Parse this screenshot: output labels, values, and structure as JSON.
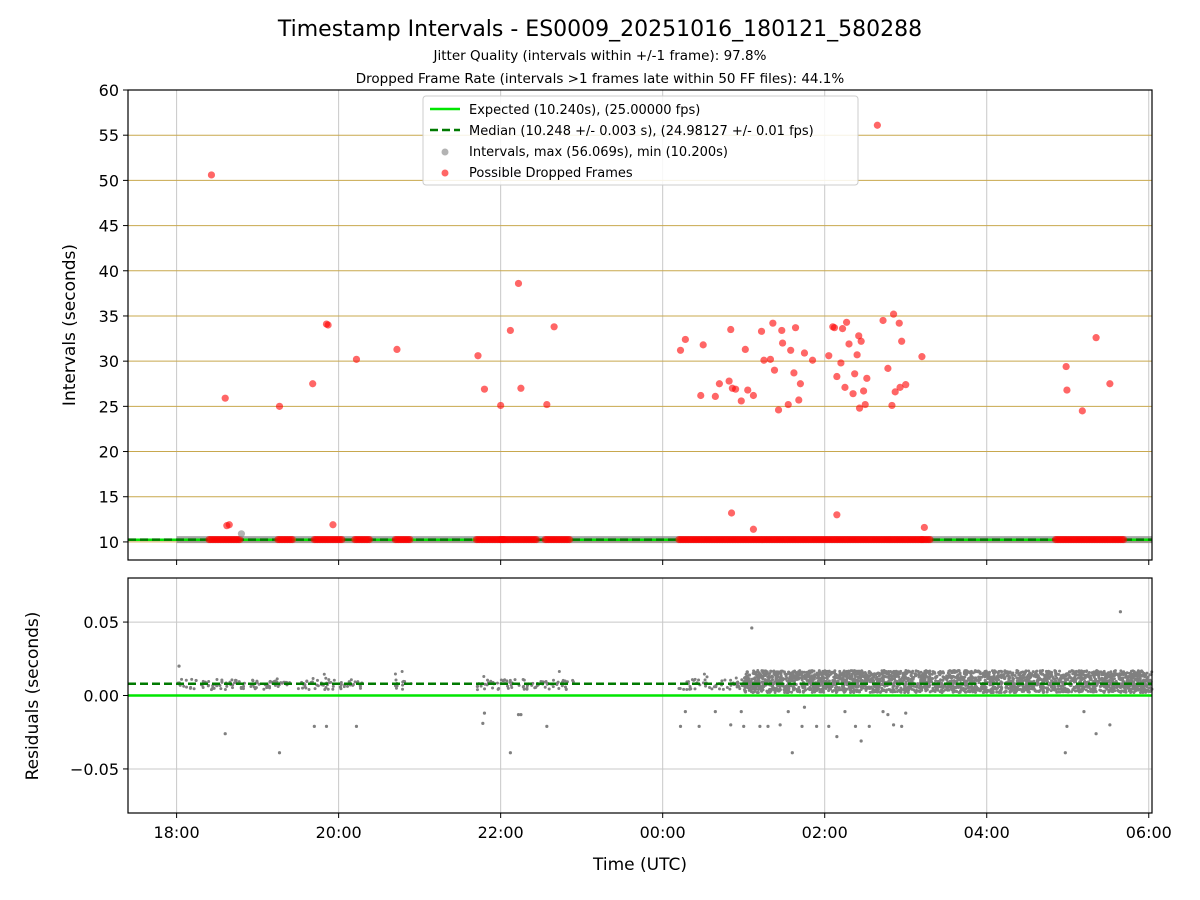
{
  "chart_data": {
    "type": "scatter",
    "title": "Timestamp Intervals - ES0009_20251016_180121_580288",
    "subtitles": [
      "Jitter Quality (intervals within +/-1 frame): 97.8%",
      "Dropped Frame Rate (intervals >1 frames late within 50 FF files): 44.1%"
    ],
    "colors": {
      "expected": "#00e600",
      "median": "#007a00",
      "intervals": "#808080",
      "dropped": "#ff0000",
      "hgrid_top": "#c8a84e",
      "grid": "#c8c8c8"
    },
    "legend": [
      "Expected (10.240s), (25.00000 fps)",
      "Median (10.248 +/- 0.003 s), (24.98127 +/- 0.01 fps)",
      "Intervals, max (56.069s), min (10.200s)",
      "Possible Dropped Frames"
    ],
    "x_axis": {
      "label": "Time (UTC)",
      "unit": "hours since 18:00",
      "xlim": [
        -0.6,
        12.04
      ],
      "ticks": [
        0,
        2,
        4,
        6,
        8,
        10,
        12
      ],
      "tick_labels": [
        "18:00",
        "20:00",
        "22:00",
        "00:00",
        "02:00",
        "04:00",
        "06:00"
      ]
    },
    "top_panel": {
      "ylabel": "Intervals (seconds)",
      "ylim": [
        8,
        60
      ],
      "yticks": [
        10,
        15,
        20,
        25,
        30,
        35,
        40,
        45,
        50,
        55,
        60
      ],
      "expected": 10.24,
      "median": 10.248,
      "normal_band_segments": [
        [
          0,
          12.04
        ]
      ],
      "dropped_baseline_segments": [
        [
          0.4,
          0.8
        ],
        [
          1.25,
          1.45
        ],
        [
          1.7,
          2.05
        ],
        [
          2.2,
          2.4
        ],
        [
          2.7,
          2.9
        ],
        [
          3.7,
          4.05
        ],
        [
          4.0,
          4.45
        ],
        [
          4.55,
          4.85
        ],
        [
          6.2,
          9.2
        ],
        [
          9.2,
          9.3
        ],
        [
          10.85,
          11.7
        ]
      ],
      "dropped_points": [
        {
          "x": 0.43,
          "y": 50.6
        },
        {
          "x": 0.6,
          "y": 25.9
        },
        {
          "x": 0.62,
          "y": 11.8
        },
        {
          "x": 0.65,
          "y": 11.9
        },
        {
          "x": 1.27,
          "y": 25.0
        },
        {
          "x": 1.68,
          "y": 27.5
        },
        {
          "x": 1.85,
          "y": 34.1
        },
        {
          "x": 1.87,
          "y": 34.0
        },
        {
          "x": 1.93,
          "y": 11.9
        },
        {
          "x": 2.22,
          "y": 30.2
        },
        {
          "x": 2.72,
          "y": 31.3
        },
        {
          "x": 3.72,
          "y": 30.6
        },
        {
          "x": 3.8,
          "y": 26.9
        },
        {
          "x": 4.0,
          "y": 25.1
        },
        {
          "x": 4.12,
          "y": 33.4
        },
        {
          "x": 4.22,
          "y": 38.6
        },
        {
          "x": 4.25,
          "y": 27.0
        },
        {
          "x": 4.57,
          "y": 25.2
        },
        {
          "x": 4.66,
          "y": 33.8
        },
        {
          "x": 6.22,
          "y": 31.2
        },
        {
          "x": 6.28,
          "y": 32.4
        },
        {
          "x": 6.47,
          "y": 26.2
        },
        {
          "x": 6.5,
          "y": 31.8
        },
        {
          "x": 6.65,
          "y": 26.1
        },
        {
          "x": 6.7,
          "y": 27.5
        },
        {
          "x": 6.82,
          "y": 27.8
        },
        {
          "x": 6.84,
          "y": 33.5
        },
        {
          "x": 6.86,
          "y": 27.0
        },
        {
          "x": 6.9,
          "y": 26.9
        },
        {
          "x": 6.97,
          "y": 25.6
        },
        {
          "x": 7.02,
          "y": 31.3
        },
        {
          "x": 7.05,
          "y": 26.8
        },
        {
          "x": 7.12,
          "y": 26.2
        },
        {
          "x": 7.22,
          "y": 33.3
        },
        {
          "x": 7.25,
          "y": 30.1
        },
        {
          "x": 7.33,
          "y": 30.2
        },
        {
          "x": 7.36,
          "y": 34.2
        },
        {
          "x": 7.38,
          "y": 29.0
        },
        {
          "x": 7.43,
          "y": 24.6
        },
        {
          "x": 7.47,
          "y": 33.4
        },
        {
          "x": 7.48,
          "y": 32.0
        },
        {
          "x": 7.55,
          "y": 25.2
        },
        {
          "x": 7.58,
          "y": 31.2
        },
        {
          "x": 7.62,
          "y": 28.7
        },
        {
          "x": 7.64,
          "y": 33.7
        },
        {
          "x": 7.68,
          "y": 25.7
        },
        {
          "x": 7.7,
          "y": 27.5
        },
        {
          "x": 7.75,
          "y": 30.9
        },
        {
          "x": 7.85,
          "y": 30.1
        },
        {
          "x": 8.05,
          "y": 30.6
        },
        {
          "x": 8.1,
          "y": 33.8
        },
        {
          "x": 8.12,
          "y": 33.7
        },
        {
          "x": 8.15,
          "y": 28.3
        },
        {
          "x": 8.2,
          "y": 29.8
        },
        {
          "x": 8.22,
          "y": 33.6
        },
        {
          "x": 8.25,
          "y": 27.1
        },
        {
          "x": 8.27,
          "y": 34.3
        },
        {
          "x": 8.3,
          "y": 31.9
        },
        {
          "x": 8.35,
          "y": 26.4
        },
        {
          "x": 8.37,
          "y": 28.6
        },
        {
          "x": 8.4,
          "y": 30.7
        },
        {
          "x": 8.42,
          "y": 32.8
        },
        {
          "x": 8.43,
          "y": 24.8
        },
        {
          "x": 8.45,
          "y": 32.2
        },
        {
          "x": 8.48,
          "y": 26.7
        },
        {
          "x": 8.5,
          "y": 25.2
        },
        {
          "x": 8.52,
          "y": 28.1
        },
        {
          "x": 8.65,
          "y": 56.1
        },
        {
          "x": 8.72,
          "y": 34.5
        },
        {
          "x": 8.78,
          "y": 29.2
        },
        {
          "x": 8.83,
          "y": 25.1
        },
        {
          "x": 8.85,
          "y": 35.2
        },
        {
          "x": 8.87,
          "y": 26.6
        },
        {
          "x": 8.92,
          "y": 34.2
        },
        {
          "x": 8.93,
          "y": 27.1
        },
        {
          "x": 8.95,
          "y": 32.2
        },
        {
          "x": 9.0,
          "y": 27.4
        },
        {
          "x": 9.2,
          "y": 30.5
        },
        {
          "x": 9.23,
          "y": 11.6
        },
        {
          "x": 6.85,
          "y": 13.2
        },
        {
          "x": 7.12,
          "y": 11.4
        },
        {
          "x": 8.15,
          "y": 13.0
        },
        {
          "x": 10.98,
          "y": 29.4
        },
        {
          "x": 10.99,
          "y": 26.8
        },
        {
          "x": 11.18,
          "y": 24.5
        },
        {
          "x": 11.35,
          "y": 32.6
        },
        {
          "x": 11.52,
          "y": 27.5
        }
      ],
      "grey_points": [
        {
          "x": 0.8,
          "y": 10.9
        }
      ]
    },
    "bottom_panel": {
      "ylabel": "Residuals (seconds)",
      "ylim": [
        -0.08,
        0.08
      ],
      "yticks": [
        -0.05,
        0.0,
        0.05
      ],
      "ytick_labels": [
        "−0.05",
        "0.00",
        "0.05"
      ],
      "expected": 0.0,
      "median": 0.008,
      "sparse_clusters": [
        [
          0.0,
          1.4
        ],
        [
          1.5,
          2.3
        ],
        [
          2.7,
          2.9
        ],
        [
          3.7,
          4.9
        ],
        [
          6.2,
          7.0
        ]
      ],
      "dense_band": {
        "x_range": [
          7.0,
          12.04
        ],
        "y_range": [
          0.002,
          0.017
        ]
      },
      "outlier_points": [
        {
          "x": 0.03,
          "y": 0.02
        },
        {
          "x": 0.6,
          "y": -0.026
        },
        {
          "x": 1.27,
          "y": -0.039
        },
        {
          "x": 1.7,
          "y": -0.021
        },
        {
          "x": 1.85,
          "y": -0.021
        },
        {
          "x": 2.22,
          "y": -0.021
        },
        {
          "x": 3.8,
          "y": -0.012
        },
        {
          "x": 3.78,
          "y": -0.019
        },
        {
          "x": 4.12,
          "y": -0.039
        },
        {
          "x": 4.22,
          "y": -0.013
        },
        {
          "x": 4.25,
          "y": -0.013
        },
        {
          "x": 4.57,
          "y": -0.021
        },
        {
          "x": 6.22,
          "y": -0.021
        },
        {
          "x": 6.28,
          "y": -0.011
        },
        {
          "x": 6.45,
          "y": -0.021
        },
        {
          "x": 6.65,
          "y": -0.011
        },
        {
          "x": 6.84,
          "y": -0.02
        },
        {
          "x": 6.97,
          "y": -0.011
        },
        {
          "x": 7.0,
          "y": -0.021
        },
        {
          "x": 7.1,
          "y": 0.046
        },
        {
          "x": 7.2,
          "y": -0.021
        },
        {
          "x": 7.3,
          "y": -0.021
        },
        {
          "x": 7.45,
          "y": -0.02
        },
        {
          "x": 7.55,
          "y": -0.011
        },
        {
          "x": 7.6,
          "y": -0.039
        },
        {
          "x": 7.72,
          "y": -0.021
        },
        {
          "x": 7.75,
          "y": -0.008
        },
        {
          "x": 7.9,
          "y": -0.021
        },
        {
          "x": 8.05,
          "y": -0.021
        },
        {
          "x": 8.15,
          "y": -0.028
        },
        {
          "x": 8.25,
          "y": -0.011
        },
        {
          "x": 8.38,
          "y": -0.021
        },
        {
          "x": 8.45,
          "y": -0.031
        },
        {
          "x": 8.55,
          "y": -0.021
        },
        {
          "x": 8.72,
          "y": -0.011
        },
        {
          "x": 8.78,
          "y": -0.013
        },
        {
          "x": 8.85,
          "y": -0.02
        },
        {
          "x": 8.95,
          "y": -0.021
        },
        {
          "x": 9.0,
          "y": -0.012
        },
        {
          "x": 10.97,
          "y": -0.039
        },
        {
          "x": 10.99,
          "y": -0.021
        },
        {
          "x": 11.2,
          "y": -0.011
        },
        {
          "x": 11.35,
          "y": -0.026
        },
        {
          "x": 11.52,
          "y": -0.02
        },
        {
          "x": 11.65,
          "y": 0.057
        }
      ]
    }
  }
}
